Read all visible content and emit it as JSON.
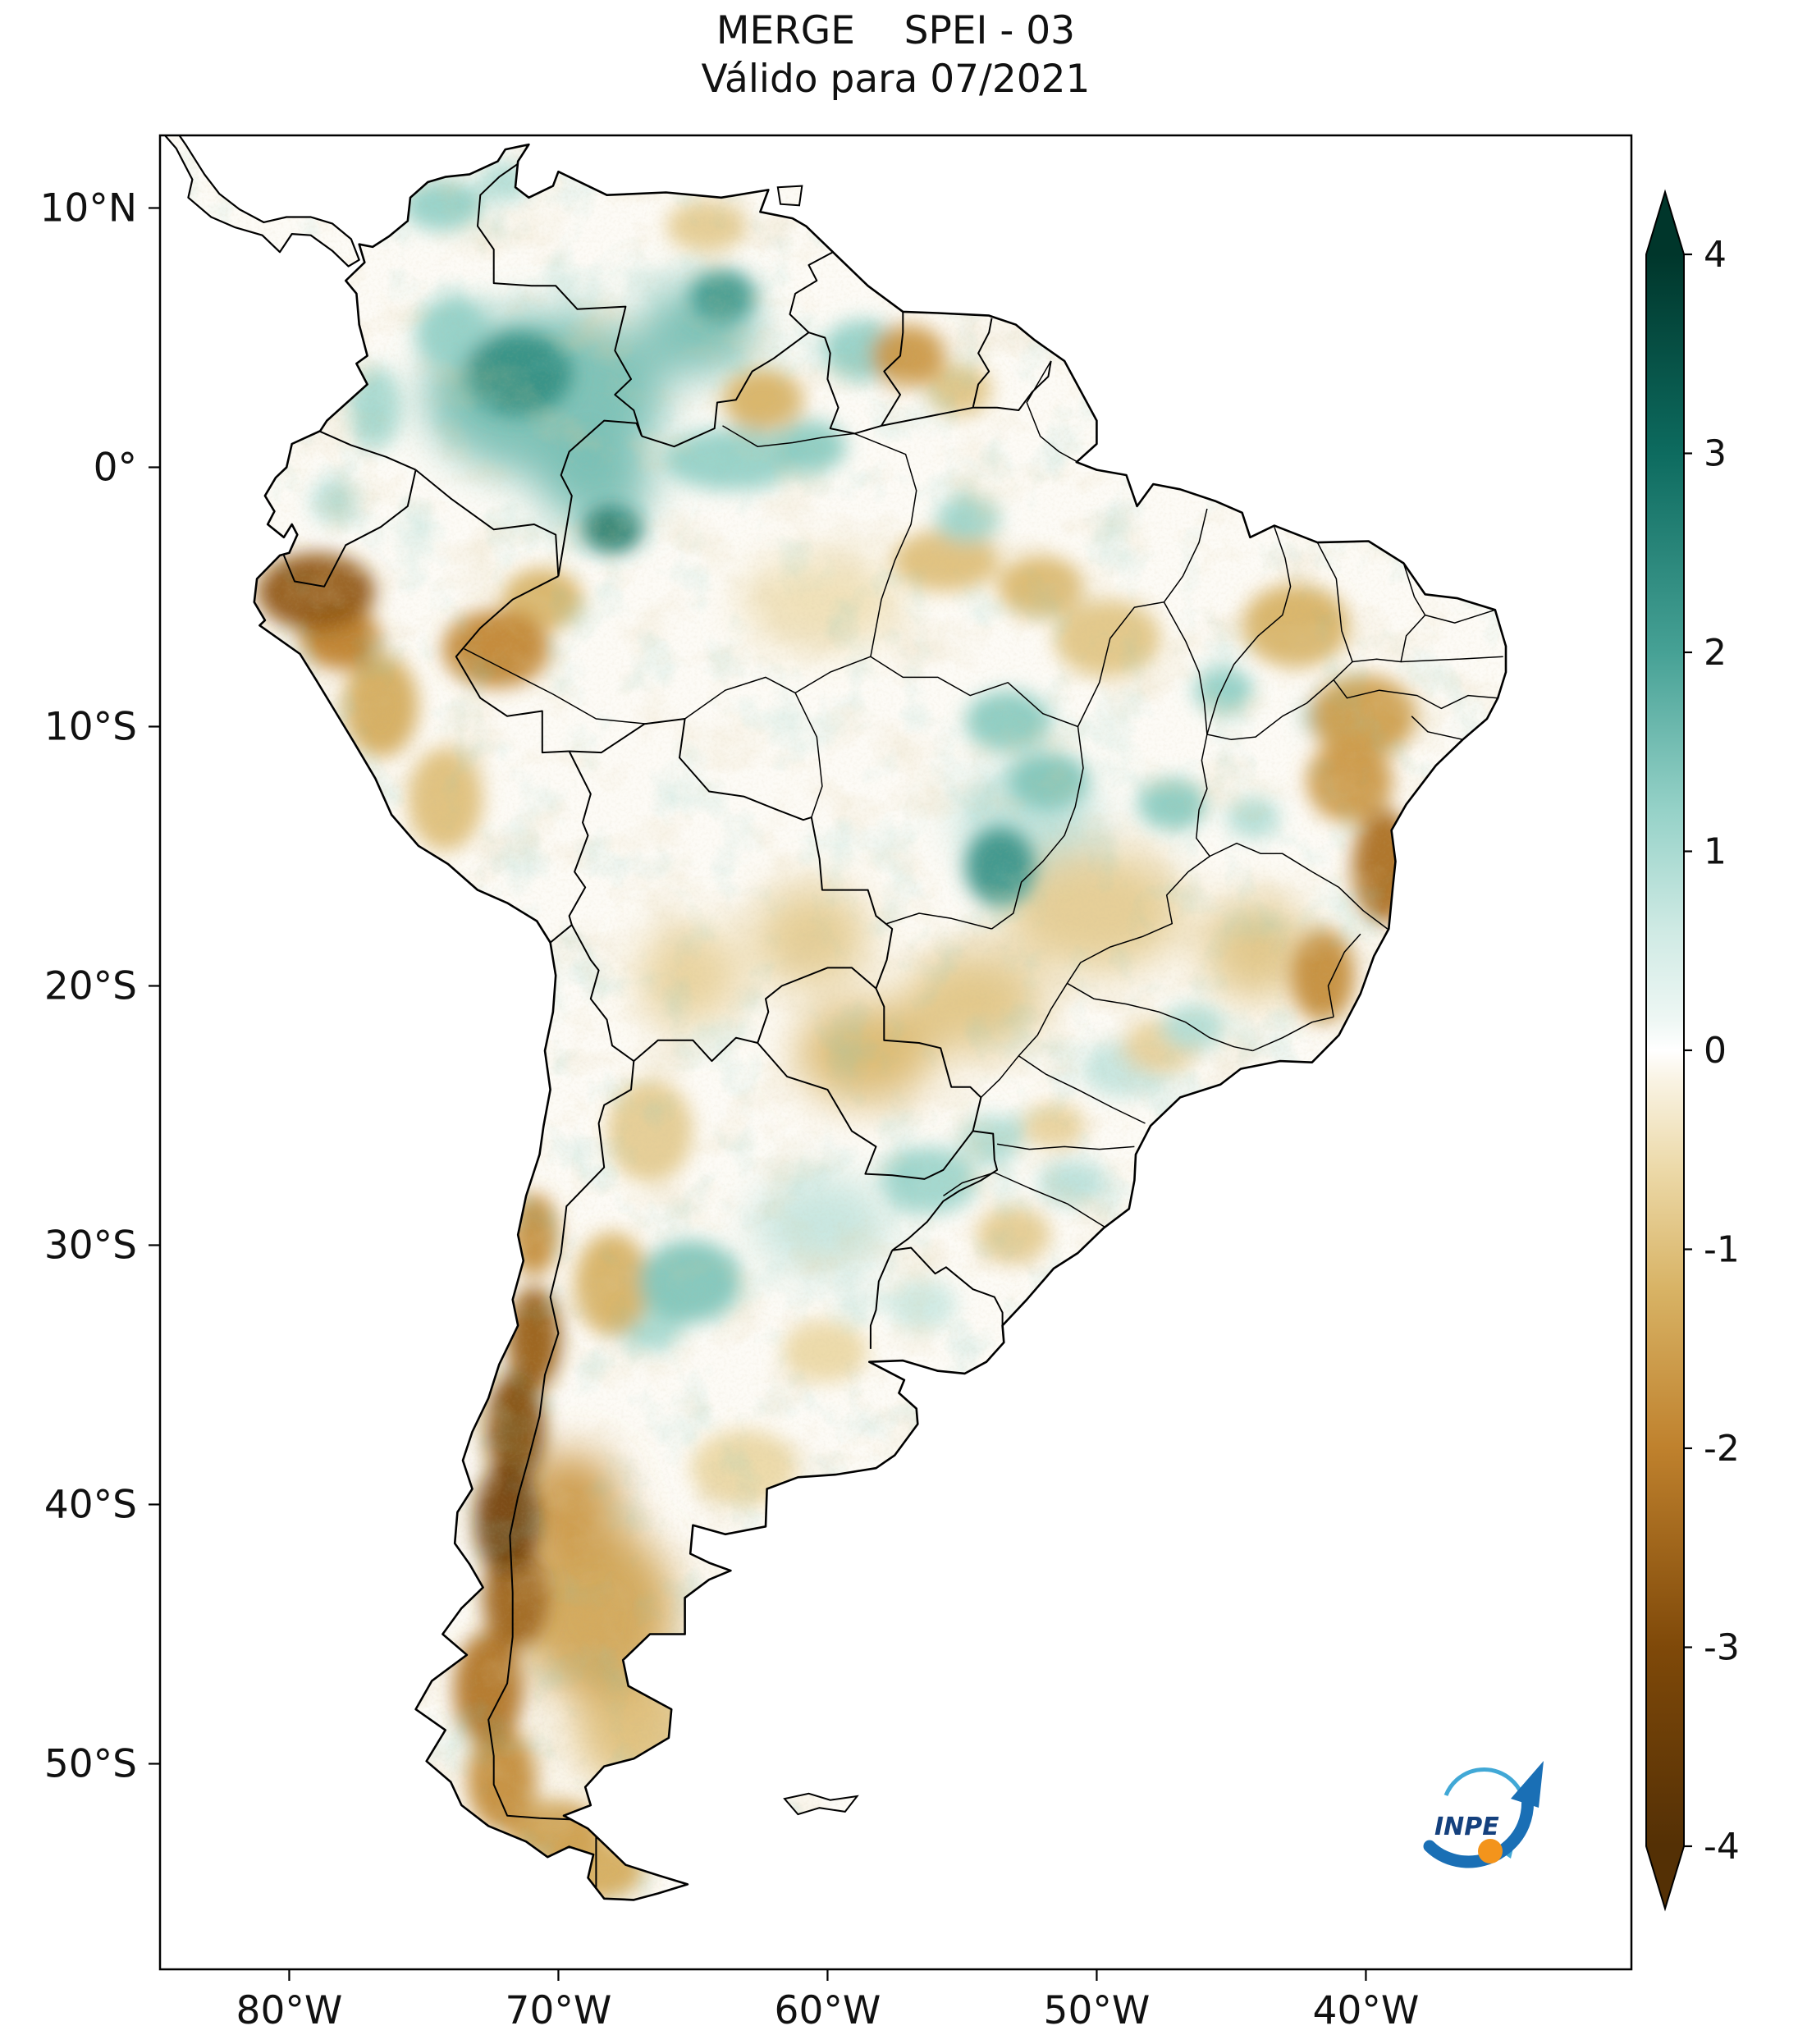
{
  "title": {
    "line1": "MERGE    SPEI - 03",
    "line2": "Válido para 07/2021"
  },
  "axes": {
    "lat_ticks": [
      {
        "label": "10°N",
        "lat": 10
      },
      {
        "label": "0°",
        "lat": 0
      },
      {
        "label": "10°S",
        "lat": -10
      },
      {
        "label": "20°S",
        "lat": -20
      },
      {
        "label": "30°S",
        "lat": -30
      },
      {
        "label": "40°S",
        "lat": -40
      },
      {
        "label": "50°S",
        "lat": -50
      }
    ],
    "lon_ticks": [
      {
        "label": "80°W",
        "lon": -80
      },
      {
        "label": "70°W",
        "lon": -70
      },
      {
        "label": "60°W",
        "lon": -60
      },
      {
        "label": "50°W",
        "lon": -50
      },
      {
        "label": "40°W",
        "lon": -40
      }
    ]
  },
  "colorbar": {
    "ticks": [
      {
        "label": "4",
        "v": 4
      },
      {
        "label": "3",
        "v": 3
      },
      {
        "label": "2",
        "v": 2
      },
      {
        "label": "1",
        "v": 1
      },
      {
        "label": "0",
        "v": 0
      },
      {
        "label": "-1",
        "v": -1
      },
      {
        "label": "-2",
        "v": -2
      },
      {
        "label": "-3",
        "v": -3
      },
      {
        "label": "-4",
        "v": -4
      }
    ],
    "stops": [
      {
        "v": -4,
        "color": "#543005"
      },
      {
        "v": -3,
        "color": "#7f4909"
      },
      {
        "v": -2,
        "color": "#bf812d"
      },
      {
        "v": -1.2,
        "color": "#d8b365"
      },
      {
        "v": -0.6,
        "color": "#ecd9a8"
      },
      {
        "v": -0.15,
        "color": "#f9f3e3"
      },
      {
        "v": 0,
        "color": "#ffffff"
      },
      {
        "v": 0.15,
        "color": "#eef7f4"
      },
      {
        "v": 0.6,
        "color": "#cfeae4"
      },
      {
        "v": 1.2,
        "color": "#96d2c8"
      },
      {
        "v": 2,
        "color": "#46a195"
      },
      {
        "v": 3,
        "color": "#0d6b5f"
      },
      {
        "v": 4,
        "color": "#00362b"
      }
    ]
  },
  "logo": {
    "text": "INPE"
  },
  "chart_data": {
    "type": "heatmap",
    "title": "MERGE    SPEI - 03",
    "subtitle": "Válido para 07/2021",
    "product": "MERGE",
    "index": "SPEI-03",
    "valid_for": "07/2021",
    "region": "South America",
    "value_range": [
      -4,
      4
    ],
    "lon_range": [
      -84.8,
      -30.1
    ],
    "lat_range": [
      -57.9,
      12.8
    ],
    "colormap": "brown-white-teal diverging (BrBG-like)",
    "anomaly_fields": [
      "lon",
      "lat",
      "rx_deg",
      "ry_deg",
      "spei_value"
    ],
    "anomalies": [
      [
        -70.5,
        2.8,
        4.5,
        3.2,
        1.5
      ],
      [
        -71.5,
        3.6,
        2.0,
        1.6,
        2.3
      ],
      [
        -73.9,
        5.2,
        1.4,
        1.4,
        1.2
      ],
      [
        -74.3,
        10.1,
        1.5,
        1.0,
        1.2
      ],
      [
        -72.0,
        11.0,
        1.0,
        0.8,
        0.9
      ],
      [
        -76.8,
        2.3,
        1.0,
        1.6,
        1.0
      ],
      [
        -78.3,
        -1.3,
        0.9,
        0.9,
        0.8
      ],
      [
        -68.6,
        -0.5,
        2.2,
        1.8,
        1.5
      ],
      [
        -68.0,
        -2.4,
        1.1,
        0.9,
        2.7
      ],
      [
        -63.6,
        0.3,
        2.6,
        1.2,
        1.2
      ],
      [
        -60.6,
        0.8,
        1.3,
        1.0,
        1.3
      ],
      [
        -64.8,
        5.3,
        2.2,
        1.8,
        1.5
      ],
      [
        -63.9,
        6.6,
        1.2,
        1.0,
        2.1
      ],
      [
        -58.7,
        4.5,
        1.5,
        1.2,
        1.2
      ],
      [
        -54.8,
        -2.0,
        1.2,
        0.9,
        1.1
      ],
      [
        -53.3,
        -9.8,
        1.6,
        1.2,
        1.3
      ],
      [
        -51.8,
        -12.1,
        1.5,
        1.1,
        1.4
      ],
      [
        -52.6,
        -13.6,
        2.6,
        2.0,
        0.8
      ],
      [
        -53.6,
        -15.4,
        1.3,
        1.5,
        2.2
      ],
      [
        -47.2,
        -13.0,
        1.3,
        1.0,
        1.3
      ],
      [
        -45.3,
        -8.6,
        1.1,
        0.9,
        1.2
      ],
      [
        -41.3,
        -9.6,
        1.1,
        0.9,
        1.1
      ],
      [
        -44.2,
        -13.5,
        1.0,
        0.8,
        0.9
      ],
      [
        -56.2,
        -27.5,
        1.8,
        1.3,
        1.1
      ],
      [
        -53.9,
        -25.9,
        1.2,
        0.9,
        0.9
      ],
      [
        -50.9,
        -27.6,
        1.3,
        0.9,
        0.8
      ],
      [
        -65.1,
        -31.4,
        1.9,
        1.6,
        1.4
      ],
      [
        -66.6,
        -33.0,
        1.3,
        1.1,
        1.0
      ],
      [
        -60.2,
        -29.2,
        2.6,
        1.9,
        0.7
      ],
      [
        -46.4,
        -21.6,
        1.2,
        0.9,
        0.9
      ],
      [
        -49.0,
        -23.2,
        1.6,
        1.1,
        0.7
      ],
      [
        -56.5,
        -32.3,
        1.3,
        1.0,
        0.6
      ],
      [
        -79.0,
        -4.8,
        2.2,
        1.5,
        -2.7
      ],
      [
        -78.1,
        -6.6,
        1.5,
        1.2,
        -2.0
      ],
      [
        -76.6,
        -9.2,
        1.4,
        2.0,
        -1.3
      ],
      [
        -74.2,
        -12.8,
        1.4,
        2.0,
        -1.0
      ],
      [
        -72.3,
        -7.0,
        2.0,
        1.5,
        -1.9
      ],
      [
        -70.6,
        -5.1,
        1.5,
        1.2,
        -1.2
      ],
      [
        -62.4,
        2.6,
        1.5,
        1.2,
        -1.2
      ],
      [
        -64.5,
        9.3,
        1.5,
        1.0,
        -0.8
      ],
      [
        -57.0,
        4.3,
        1.4,
        1.2,
        -1.6
      ],
      [
        -55.1,
        3.0,
        1.2,
        1.0,
        -0.9
      ],
      [
        -60.2,
        -5.2,
        3.0,
        1.8,
        -0.5
      ],
      [
        -55.6,
        -3.6,
        2.0,
        1.2,
        -1.0
      ],
      [
        -52.1,
        -4.6,
        1.6,
        1.2,
        -1.1
      ],
      [
        -49.6,
        -6.6,
        2.0,
        1.5,
        -0.9
      ],
      [
        -42.6,
        -6.1,
        2.0,
        1.6,
        -1.2
      ],
      [
        -40.1,
        -9.6,
        2.0,
        1.6,
        -1.5
      ],
      [
        -40.6,
        -12.1,
        1.6,
        1.6,
        -1.6
      ],
      [
        -39.3,
        -15.4,
        1.2,
        2.2,
        -2.3
      ],
      [
        -41.6,
        -19.6,
        1.2,
        1.8,
        -1.8
      ],
      [
        -44.1,
        -18.6,
        2.0,
        2.0,
        -0.9
      ],
      [
        -50.1,
        -17.1,
        3.4,
        2.4,
        -0.8
      ],
      [
        -54.6,
        -20.6,
        2.6,
        2.0,
        -0.9
      ],
      [
        -58.6,
        -22.6,
        2.6,
        2.0,
        -1.1
      ],
      [
        -60.6,
        -18.1,
        2.2,
        2.0,
        -0.8
      ],
      [
        -65.1,
        -19.6,
        2.0,
        2.0,
        -0.7
      ],
      [
        -66.6,
        -25.6,
        1.6,
        2.0,
        -0.8
      ],
      [
        -47.6,
        -22.3,
        1.4,
        1.1,
        -0.7
      ],
      [
        -53.1,
        -29.6,
        1.4,
        1.1,
        -0.8
      ],
      [
        -51.6,
        -25.4,
        1.2,
        0.9,
        -0.7
      ],
      [
        -70.9,
        -29.6,
        0.9,
        1.6,
        -1.8
      ],
      [
        -68.0,
        -31.5,
        1.4,
        2.0,
        -1.2
      ],
      [
        -70.9,
        -33.6,
        1.0,
        2.0,
        -2.6
      ],
      [
        -71.6,
        -37.1,
        1.1,
        2.2,
        -2.9
      ],
      [
        -71.9,
        -40.6,
        1.2,
        2.2,
        -3.2
      ],
      [
        -71.6,
        -43.6,
        1.2,
        2.0,
        -2.5
      ],
      [
        -72.6,
        -47.1,
        1.3,
        2.2,
        -2.2
      ],
      [
        -72.1,
        -50.6,
        1.3,
        2.0,
        -1.8
      ],
      [
        -70.1,
        -52.6,
        1.8,
        1.2,
        -1.5
      ],
      [
        -68.6,
        -54.1,
        1.8,
        1.2,
        -1.3
      ],
      [
        -69.6,
        -40.1,
        2.0,
        2.2,
        -1.6
      ],
      [
        -68.6,
        -44.1,
        3.0,
        3.4,
        -1.4
      ],
      [
        -67.1,
        -48.6,
        2.4,
        2.4,
        -1.0
      ],
      [
        -63.1,
        -38.6,
        2.0,
        1.5,
        -0.6
      ],
      [
        -60.1,
        -34.1,
        1.6,
        1.2,
        -0.6
      ]
    ]
  }
}
